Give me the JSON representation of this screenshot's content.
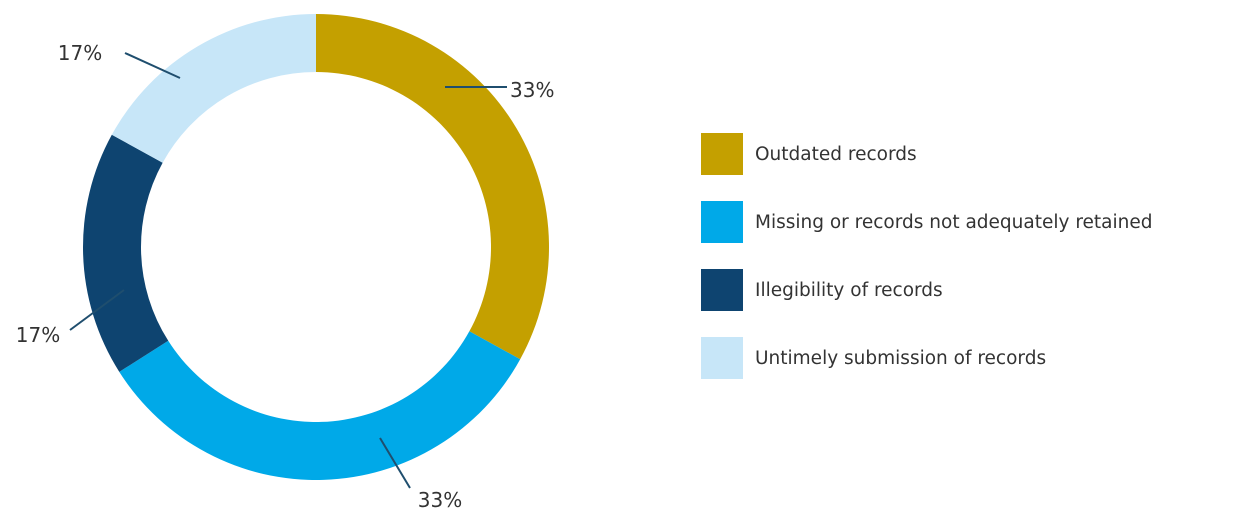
{
  "chart_data": {
    "type": "pie",
    "variant": "donut",
    "slices": [
      {
        "label": "Outdated records",
        "value": 33,
        "display": "33%",
        "color": "#C4A000"
      },
      {
        "label": "Missing or records not adequately retained",
        "value": 33,
        "display": "33%",
        "color": "#00A9E8"
      },
      {
        "label": "Illegibility of records",
        "value": 17,
        "display": "17%",
        "color": "#0E4470"
      },
      {
        "label": "Untimely submission of records",
        "value": 17,
        "display": "17%",
        "color": "#C7E6F8"
      }
    ],
    "legend_position": "right"
  }
}
